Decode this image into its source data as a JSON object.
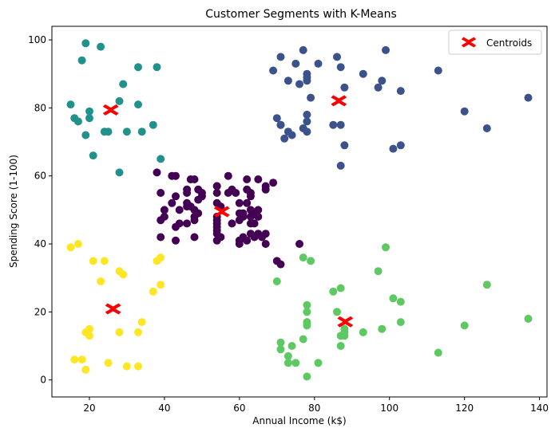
{
  "chart_data": {
    "type": "scatter",
    "title": "Customer Segments with K-Means",
    "xlabel": "Annual Income (k$)",
    "ylabel": "Spending Score (1-100)",
    "xlim": [
      10,
      142
    ],
    "ylim": [
      -5,
      104
    ],
    "xticks": [
      20,
      40,
      60,
      80,
      100,
      120,
      140
    ],
    "yticks": [
      0,
      20,
      40,
      60,
      80,
      100
    ],
    "grid": false,
    "legend_position": "top-right",
    "clusters": [
      {
        "color": "#440154",
        "points": [
          [
            38,
            61
          ],
          [
            39,
            55
          ],
          [
            39,
            47
          ],
          [
            39,
            42
          ],
          [
            40,
            48
          ],
          [
            40,
            50
          ],
          [
            42,
            52
          ],
          [
            42,
            60
          ],
          [
            43,
            54
          ],
          [
            43,
            60
          ],
          [
            43,
            45
          ],
          [
            43,
            41
          ],
          [
            44,
            50
          ],
          [
            44,
            46
          ],
          [
            46,
            51
          ],
          [
            46,
            46
          ],
          [
            46,
            56
          ],
          [
            46,
            55
          ],
          [
            46,
            52
          ],
          [
            47,
            59
          ],
          [
            47,
            51
          ],
          [
            48,
            59
          ],
          [
            48,
            50
          ],
          [
            48,
            48
          ],
          [
            48,
            47
          ],
          [
            48,
            42
          ],
          [
            49,
            49
          ],
          [
            49,
            56
          ],
          [
            49,
            53
          ],
          [
            50,
            54
          ],
          [
            50,
            55
          ],
          [
            54,
            57
          ],
          [
            54,
            55
          ],
          [
            54,
            52
          ],
          [
            54,
            48
          ],
          [
            54,
            47
          ],
          [
            54,
            46
          ],
          [
            54,
            45
          ],
          [
            54,
            41
          ],
          [
            54,
            43
          ],
          [
            54,
            44
          ],
          [
            54,
            57
          ],
          [
            55,
            51
          ],
          [
            55,
            42
          ],
          [
            57,
            60
          ],
          [
            57,
            55
          ],
          [
            58,
            46
          ],
          [
            58,
            56
          ],
          [
            59,
            55
          ],
          [
            60,
            41
          ],
          [
            60,
            49
          ],
          [
            60,
            52
          ],
          [
            60,
            40
          ],
          [
            60,
            47
          ],
          [
            61,
            42
          ],
          [
            61,
            48
          ],
          [
            61,
            49
          ],
          [
            62,
            41
          ],
          [
            62,
            52
          ],
          [
            62,
            56
          ],
          [
            62,
            59
          ],
          [
            63,
            50
          ],
          [
            63,
            43
          ],
          [
            63,
            48
          ],
          [
            63,
            55
          ],
          [
            63,
            46
          ],
          [
            63,
            54
          ],
          [
            64,
            42
          ],
          [
            64,
            46
          ],
          [
            64,
            49
          ],
          [
            65,
            43
          ],
          [
            65,
            48
          ],
          [
            65,
            50
          ],
          [
            65,
            59
          ],
          [
            66,
            42
          ],
          [
            67,
            43
          ],
          [
            67,
            56
          ],
          [
            67,
            57
          ],
          [
            67,
            40
          ],
          [
            69,
            58
          ],
          [
            70,
            35
          ],
          [
            71,
            34
          ],
          [
            76,
            40
          ]
        ]
      },
      {
        "color": "#3b528b",
        "points": [
          [
            69,
            91
          ],
          [
            70,
            77
          ],
          [
            71,
            95
          ],
          [
            71,
            75
          ],
          [
            71,
            75
          ],
          [
            72,
            71
          ],
          [
            73,
            88
          ],
          [
            73,
            73
          ],
          [
            74,
            72
          ],
          [
            75,
            93
          ],
          [
            76,
            87
          ],
          [
            77,
            97
          ],
          [
            77,
            74
          ],
          [
            78,
            90
          ],
          [
            78,
            88
          ],
          [
            78,
            76
          ],
          [
            78,
            89
          ],
          [
            78,
            78
          ],
          [
            78,
            73
          ],
          [
            79,
            83
          ],
          [
            81,
            93
          ],
          [
            85,
            75
          ],
          [
            86,
            95
          ],
          [
            87,
            63
          ],
          [
            87,
            75
          ],
          [
            87,
            92
          ],
          [
            88,
            86
          ],
          [
            88,
            69
          ],
          [
            93,
            90
          ],
          [
            97,
            86
          ],
          [
            98,
            88
          ],
          [
            99,
            97
          ],
          [
            101,
            68
          ],
          [
            103,
            85
          ],
          [
            103,
            69
          ],
          [
            113,
            91
          ],
          [
            120,
            79
          ],
          [
            126,
            74
          ],
          [
            137,
            83
          ]
        ]
      },
      {
        "color": "#21918c",
        "points": [
          [
            15,
            81
          ],
          [
            16,
            77
          ],
          [
            17,
            76
          ],
          [
            18,
            94
          ],
          [
            19,
            72
          ],
          [
            19,
            99
          ],
          [
            20,
            77
          ],
          [
            20,
            79
          ],
          [
            21,
            66
          ],
          [
            23,
            98
          ],
          [
            24,
            73
          ],
          [
            25,
            73
          ],
          [
            28,
            82
          ],
          [
            28,
            61
          ],
          [
            29,
            87
          ],
          [
            30,
            73
          ],
          [
            33,
            92
          ],
          [
            33,
            81
          ],
          [
            34,
            73
          ],
          [
            37,
            75
          ],
          [
            38,
            92
          ],
          [
            39,
            65
          ]
        ]
      },
      {
        "color": "#5ec962",
        "points": [
          [
            70,
            29
          ],
          [
            71,
            11
          ],
          [
            71,
            9
          ],
          [
            73,
            5
          ],
          [
            73,
            7
          ],
          [
            74,
            10
          ],
          [
            75,
            5
          ],
          [
            77,
            12
          ],
          [
            77,
            36
          ],
          [
            78,
            22
          ],
          [
            78,
            17
          ],
          [
            78,
            20
          ],
          [
            78,
            16
          ],
          [
            78,
            1
          ],
          [
            79,
            35
          ],
          [
            81,
            5
          ],
          [
            85,
            26
          ],
          [
            86,
            20
          ],
          [
            87,
            27
          ],
          [
            87,
            13
          ],
          [
            87,
            10
          ],
          [
            88,
            13
          ],
          [
            88,
            15
          ],
          [
            88,
            14
          ],
          [
            93,
            14
          ],
          [
            97,
            32
          ],
          [
            98,
            15
          ],
          [
            99,
            39
          ],
          [
            101,
            24
          ],
          [
            103,
            17
          ],
          [
            103,
            23
          ],
          [
            113,
            8
          ],
          [
            120,
            16
          ],
          [
            126,
            28
          ],
          [
            137,
            18
          ]
        ]
      },
      {
        "color": "#fde725",
        "points": [
          [
            15,
            39
          ],
          [
            16,
            6
          ],
          [
            17,
            40
          ],
          [
            18,
            6
          ],
          [
            19,
            3
          ],
          [
            19,
            14
          ],
          [
            20,
            15
          ],
          [
            20,
            13
          ],
          [
            21,
            35
          ],
          [
            23,
            29
          ],
          [
            24,
            35
          ],
          [
            25,
            5
          ],
          [
            28,
            14
          ],
          [
            28,
            32
          ],
          [
            29,
            31
          ],
          [
            30,
            4
          ],
          [
            33,
            4
          ],
          [
            33,
            14
          ],
          [
            34,
            17
          ],
          [
            37,
            26
          ],
          [
            38,
            35
          ],
          [
            39,
            36
          ],
          [
            39,
            28
          ]
        ]
      }
    ],
    "centroids": {
      "label": "Centroids",
      "color": "#ff0000",
      "points": [
        [
          55.3,
          49.5
        ],
        [
          86.5,
          82.1
        ],
        [
          25.7,
          79.4
        ],
        [
          88.2,
          17.1
        ],
        [
          26.3,
          20.9
        ]
      ]
    }
  }
}
